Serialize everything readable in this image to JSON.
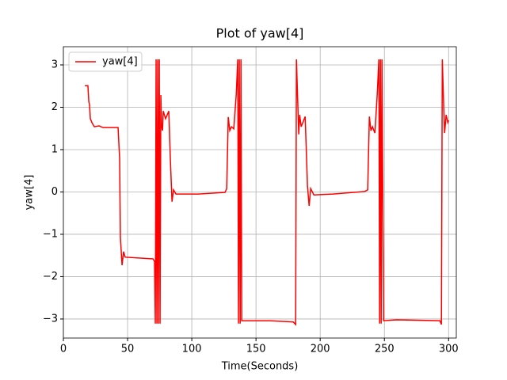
{
  "chart_data": {
    "type": "line",
    "title": "Plot of yaw[4]",
    "xlabel": "Time(Seconds)",
    "ylabel": "yaw[4]",
    "x": [
      16.7,
      19.1,
      19.8,
      20.4,
      21,
      22.2,
      24.1,
      27.8,
      30.9,
      42.6,
      43.8,
      44.4,
      45.7,
      46.9,
      48.1,
      69.8,
      71,
      71.6,
      72.2,
      72.8,
      73.5,
      74,
      74.7,
      75.3,
      75.9,
      76.5,
      77.2,
      77.8,
      79.6,
      82.1,
      83.3,
      84.6,
      85.8,
      87.7,
      104.9,
      125.9,
      127.2,
      128.4,
      129.6,
      130.9,
      132.7,
      134.6,
      135.8,
      136.4,
      137,
      137.7,
      138.3,
      138.9,
      142,
      160.5,
      179,
      180.9,
      181.5,
      183.3,
      184,
      185.2,
      188.3,
      190.1,
      191.4,
      192.6,
      195.1,
      209.9,
      234.6,
      237,
      238.3,
      239.5,
      240.7,
      242.6,
      244.4,
      245.7,
      246.3,
      246.9,
      247.5,
      248.1,
      249.4,
      259.3,
      293.2,
      294.4,
      295.1,
      296.3,
      296.9,
      298.1,
      299.4,
      300
    ],
    "series": [
      {
        "name": "yaw[4]",
        "color": "#ff0000",
        "values": [
          2.51,
          2.51,
          2.14,
          2.05,
          1.73,
          1.64,
          1.54,
          1.56,
          1.52,
          1.52,
          0.79,
          -1.07,
          -1.73,
          -1.41,
          -1.54,
          -1.58,
          -1.64,
          -3.11,
          3.13,
          -3.11,
          3.13,
          -3.11,
          3.13,
          -3.11,
          2.29,
          1.54,
          1.45,
          1.91,
          1.73,
          1.91,
          0.79,
          -0.23,
          0.05,
          -0.05,
          -0.05,
          -0.01,
          0.08,
          1.77,
          1.45,
          1.54,
          1.49,
          2.29,
          3.13,
          -3.11,
          3.13,
          -3.11,
          3.13,
          -3.04,
          -3.04,
          -3.04,
          -3.07,
          -3.13,
          3.13,
          1.36,
          1.82,
          1.54,
          1.78,
          0.14,
          -0.33,
          0.08,
          -0.07,
          -0.05,
          0.01,
          0.05,
          1.78,
          1.45,
          1.54,
          1.39,
          2.29,
          3.13,
          -3.11,
          3.13,
          -3.11,
          3.13,
          -3.04,
          -3.02,
          -3.04,
          -3.13,
          3.13,
          1.91,
          1.39,
          1.82,
          1.64,
          1.69
        ]
      }
    ],
    "xlim": [
      0,
      306
    ],
    "ylim": [
      -3.45,
      3.43
    ],
    "xticks": [
      0,
      50,
      100,
      150,
      200,
      250,
      300
    ],
    "yticks": [
      {
        "value": -3,
        "label": "−3"
      },
      {
        "value": -2,
        "label": "−2"
      },
      {
        "value": -1,
        "label": "−1"
      },
      0,
      1,
      2,
      3
    ],
    "grid": true,
    "legend": "upper-left"
  }
}
